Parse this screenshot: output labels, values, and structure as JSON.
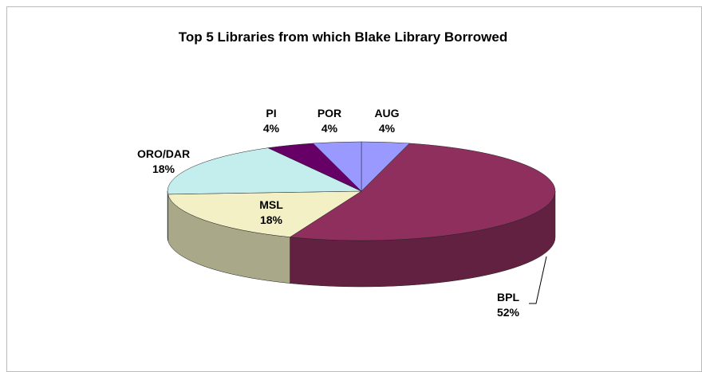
{
  "chart_data": {
    "type": "pie3d",
    "title": "Top 5 Libraries from which Blake Library Borrowed",
    "categories": [
      "AUG",
      "BPL",
      "MSL",
      "ORO/DAR",
      "PI",
      "POR"
    ],
    "values": [
      4,
      52,
      18,
      18,
      4,
      4
    ],
    "value_labels": [
      "4%",
      "52%",
      "18%",
      "18%",
      "4%",
      "4%"
    ],
    "colors": [
      "#9999ff",
      "#8e2f5e",
      "#f2f0c4",
      "#c4eeee",
      "#660066",
      "#9999ff"
    ]
  }
}
